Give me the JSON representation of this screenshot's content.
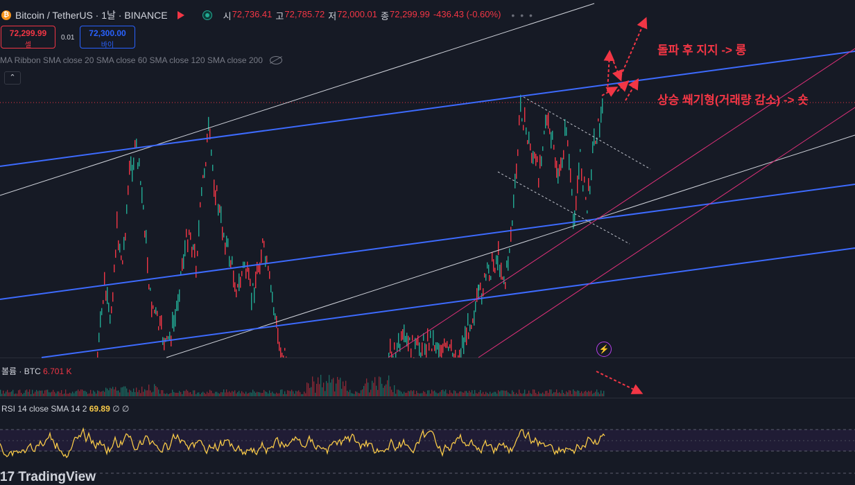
{
  "header": {
    "coin_badge": "₿",
    "symbol_title": "Bitcoin / TetherUS · 1날 · BINANCE",
    "ohlc": [
      {
        "key": "시",
        "value": "72,736.41"
      },
      {
        "key": "고",
        "value": "72,785.72"
      },
      {
        "key": "저",
        "value": "72,000.01"
      },
      {
        "key": "종",
        "value": "72,299.99"
      }
    ],
    "change": "-436.43 (-0.60%)",
    "more": "• • •"
  },
  "trade": {
    "sell_price": "72,299.99",
    "sell_label": "셀",
    "spread": "0.01",
    "buy_price": "72,300.00",
    "buy_label": "바이"
  },
  "indicators": {
    "ma_ribbon": "MA Ribbon SMA close 20 SMA close 60 SMA close 120 SMA close 200",
    "collapse_glyph": "⌃"
  },
  "annotations": {
    "long_note": "돌파 후 지지 -> 롱",
    "short_note": "상승 쐐기형(거래량 감소) -> 숏"
  },
  "volume_pane": {
    "label": "볼륨 · BTC",
    "value": "6.701 K"
  },
  "rsi_pane": {
    "label": "RSI 14 close SMA 14 2",
    "value": "69.89",
    "extra": "∅ ∅"
  },
  "logo": "17 TradingView",
  "colors": {
    "background": "#161a25",
    "up": "#22ab94",
    "down": "#f23645",
    "channel": "#2962ff",
    "rsi": "#f7c948",
    "annotation": "#f23645"
  }
}
